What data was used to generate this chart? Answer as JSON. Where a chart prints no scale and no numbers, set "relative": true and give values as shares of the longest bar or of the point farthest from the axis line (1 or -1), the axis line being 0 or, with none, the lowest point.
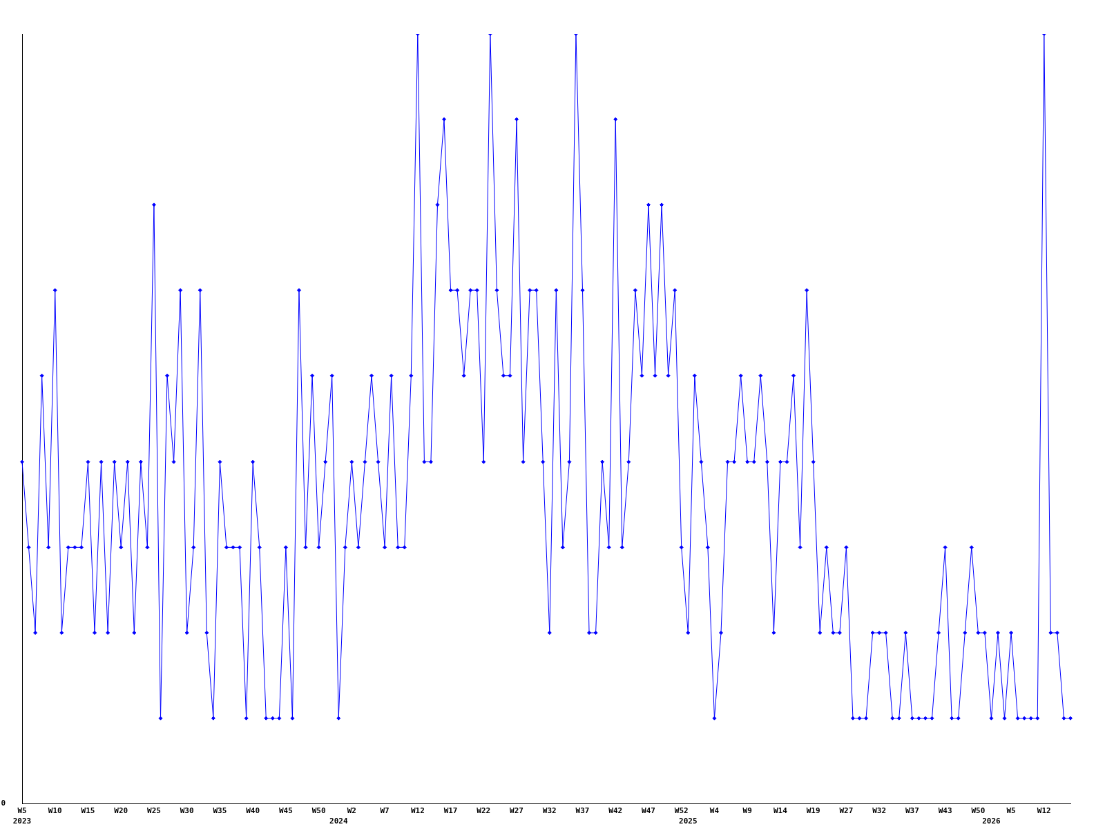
{
  "chart_data": {
    "type": "line",
    "relative": true,
    "marker": "diamond",
    "line_style": "solid",
    "grid": false,
    "legend": false,
    "annotations": [
      "0"
    ],
    "categories": [
      "W5\n2023",
      null,
      null,
      null,
      null,
      "W10",
      null,
      null,
      null,
      null,
      "W15",
      null,
      null,
      null,
      null,
      "W20",
      null,
      null,
      null,
      null,
      "W25",
      null,
      null,
      null,
      null,
      "W30",
      null,
      null,
      null,
      null,
      "W35",
      null,
      null,
      null,
      null,
      "W40",
      null,
      null,
      null,
      null,
      "W45",
      null,
      null,
      null,
      null,
      "W50",
      null,
      null,
      "\n2024",
      null,
      "W2",
      null,
      null,
      null,
      null,
      "W7",
      null,
      null,
      null,
      null,
      "W12",
      null,
      null,
      null,
      null,
      "W17",
      null,
      null,
      null,
      null,
      "W22",
      null,
      null,
      null,
      null,
      "W27",
      null,
      null,
      null,
      null,
      "W32",
      null,
      null,
      null,
      null,
      "W37",
      null,
      null,
      null,
      null,
      "W42",
      null,
      null,
      null,
      null,
      "W47",
      null,
      null,
      null,
      null,
      "W52",
      "\n2025",
      null,
      null,
      null,
      "W4",
      null,
      null,
      null,
      null,
      "W9",
      null,
      null,
      null,
      null,
      "W14",
      null,
      null,
      null,
      null,
      "W19",
      null,
      null,
      null,
      null,
      "W27",
      null,
      null,
      null,
      null,
      "W32",
      null,
      null,
      null,
      null,
      "W37",
      null,
      null,
      null,
      null,
      "W43",
      null,
      null,
      null,
      null,
      "W50",
      null,
      "\n2026",
      null,
      null,
      "W5",
      null,
      null,
      null,
      null,
      "W12",
      null,
      null,
      null,
      null
    ],
    "series": [
      {
        "color": "#0000ff",
        "values": [
          0.444,
          0.333,
          0.222,
          0.556,
          0.333,
          0.667,
          0.222,
          0.333,
          0.333,
          0.333,
          0.444,
          0.222,
          0.444,
          0.222,
          0.444,
          0.333,
          0.444,
          0.222,
          0.444,
          0.333,
          0.778,
          0.111,
          0.556,
          0.444,
          0.667,
          0.222,
          0.333,
          0.667,
          0.222,
          0.111,
          0.444,
          0.333,
          0.333,
          0.333,
          0.111,
          0.444,
          0.333,
          0.111,
          0.111,
          0.111,
          0.333,
          0.111,
          0.667,
          0.333,
          0.556,
          0.333,
          0.444,
          0.556,
          0.111,
          0.333,
          0.444,
          0.333,
          0.444,
          0.556,
          0.444,
          0.333,
          0.556,
          0.333,
          0.333,
          0.556,
          1,
          0.444,
          0.444,
          0.778,
          0.889,
          0.667,
          0.667,
          0.556,
          0.667,
          0.667,
          0.444,
          1,
          0.667,
          0.556,
          0.556,
          0.889,
          0.444,
          0.667,
          0.667,
          0.444,
          0.222,
          0.667,
          0.333,
          0.444,
          1,
          0.667,
          0.222,
          0.222,
          0.444,
          0.333,
          0.889,
          0.333,
          0.444,
          0.667,
          0.556,
          0.778,
          0.556,
          0.778,
          0.556,
          0.667,
          0.333,
          0.222,
          0.556,
          0.444,
          0.333,
          0.111,
          0.222,
          0.444,
          0.444,
          0.556,
          0.444,
          0.444,
          0.556,
          0.444,
          0.222,
          0.444,
          0.444,
          0.556,
          0.333,
          0.667,
          0.444,
          0.222,
          0.333,
          0.222,
          0.222,
          0.333,
          0.111,
          0.111,
          0.111,
          0.222,
          0.222,
          0.222,
          0.111,
          0.111,
          0.222,
          0.111,
          0.111,
          0.111,
          0.111,
          0.222,
          0.333,
          0.111,
          0.111,
          0.222,
          0.333,
          0.222,
          0.222,
          0.111,
          0.222,
          0.111,
          0.222,
          0.111,
          0.111,
          0.111,
          0.111,
          1,
          0.222,
          0.222,
          0.111,
          0.111
        ]
      }
    ]
  }
}
